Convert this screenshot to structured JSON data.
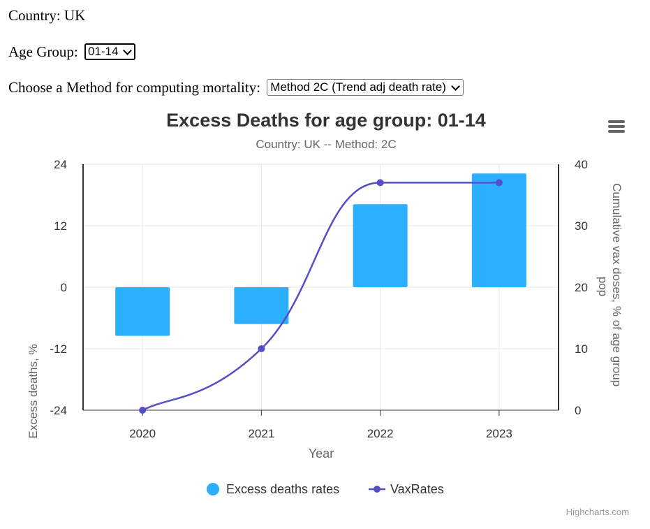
{
  "controls": {
    "country_label": "Country: UK",
    "age_group_label": "Age Group:",
    "age_group_value": "01-14",
    "method_label": "Choose a Method for computing mortality:",
    "method_value": "Method 2C (Trend adj death rate)"
  },
  "chart_data": {
    "type": "bar",
    "title": "Excess Deaths for age group: 01-14",
    "subtitle": "Country: UK -- Method: 2C",
    "xlabel": "Year",
    "categories": [
      "2020",
      "2021",
      "2022",
      "2023"
    ],
    "y_left": {
      "label": "Excess deaths, %",
      "min": -24,
      "max": 24,
      "ticks": [
        -24,
        -12,
        0,
        12,
        24
      ],
      "tick_labels": [
        "-24",
        "-12",
        "0",
        "12",
        "24"
      ]
    },
    "y_right": {
      "label": "Cumulative vax doses, % of age group pop",
      "min": 0,
      "max": 40,
      "ticks": [
        0,
        10,
        20,
        30,
        40
      ],
      "tick_labels": [
        "0",
        "10",
        "20",
        "30",
        "40"
      ]
    },
    "series": [
      {
        "name": "Excess deaths rates",
        "type": "column",
        "axis": "left",
        "color": "#2caffe",
        "values": [
          -9.5,
          -7.2,
          16.2,
          22.2
        ]
      },
      {
        "name": "VaxRates",
        "type": "spline",
        "axis": "right",
        "color": "#544fc5",
        "values": [
          0,
          10,
          37,
          37
        ]
      }
    ],
    "grid": true,
    "legend_position": "bottom-center",
    "credits": "Highcharts.com"
  }
}
